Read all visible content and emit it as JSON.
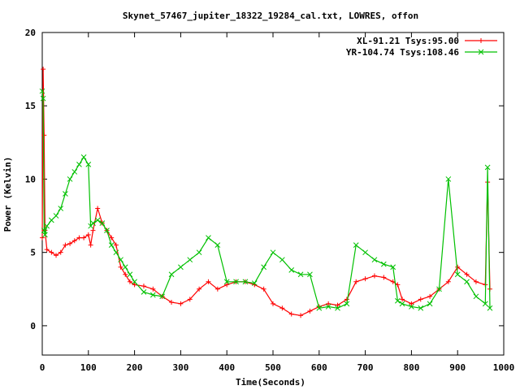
{
  "chart_data": {
    "type": "line",
    "title": "Skynet_57467_jupiter_18322_19284_cal.txt, LOWRES, offon",
    "xlabel": "Time(Seconds)",
    "ylabel": "Power (Kelvin)",
    "xlim": [
      0,
      1000
    ],
    "ylim": [
      -2,
      20
    ],
    "xticks": [
      0,
      100,
      200,
      300,
      400,
      500,
      600,
      700,
      800,
      900,
      1000
    ],
    "yticks": [
      0,
      5,
      10,
      15,
      20
    ],
    "grid": false,
    "legend_position": "top-right",
    "series": [
      {
        "name": "XL-91.21 Tsys:95.00",
        "color": "#ff0000",
        "marker": "+",
        "x": [
          0,
          2,
          4,
          6,
          10,
          20,
          30,
          40,
          50,
          60,
          70,
          80,
          90,
          100,
          105,
          110,
          120,
          130,
          140,
          150,
          160,
          170,
          180,
          190,
          200,
          220,
          240,
          260,
          280,
          300,
          320,
          340,
          360,
          380,
          400,
          420,
          440,
          460,
          480,
          500,
          520,
          540,
          560,
          580,
          600,
          620,
          640,
          660,
          680,
          700,
          720,
          740,
          760,
          770,
          780,
          800,
          820,
          840,
          860,
          880,
          900,
          920,
          940,
          960,
          965,
          970
        ],
        "y": [
          6,
          17.5,
          13,
          6.5,
          5.2,
          5,
          4.8,
          5,
          5.5,
          5.6,
          5.8,
          6,
          6,
          6.2,
          5.5,
          6.5,
          8,
          7,
          6.5,
          6,
          5.5,
          4,
          3.5,
          3,
          2.8,
          2.7,
          2.5,
          2,
          1.6,
          1.5,
          1.8,
          2.5,
          3,
          2.5,
          2.8,
          3,
          3,
          2.8,
          2.5,
          1.5,
          1.2,
          0.8,
          0.7,
          1,
          1.3,
          1.5,
          1.4,
          1.8,
          3,
          3.2,
          3.4,
          3.3,
          3,
          2.8,
          1.8,
          1.5,
          1.8,
          2,
          2.5,
          3,
          4,
          3.5,
          3,
          2.8,
          9.8,
          2.5
        ]
      },
      {
        "name": "YR-104.74 Tsys:108.46",
        "color": "#00c000",
        "marker": "x",
        "x": [
          0,
          2,
          4,
          6,
          10,
          20,
          30,
          40,
          50,
          60,
          70,
          80,
          90,
          100,
          105,
          110,
          120,
          130,
          140,
          150,
          160,
          170,
          180,
          190,
          200,
          220,
          240,
          260,
          280,
          300,
          320,
          340,
          360,
          380,
          400,
          420,
          440,
          460,
          480,
          500,
          520,
          540,
          560,
          580,
          600,
          620,
          640,
          660,
          680,
          700,
          720,
          740,
          760,
          770,
          780,
          800,
          820,
          840,
          860,
          880,
          900,
          920,
          940,
          960,
          965,
          970
        ],
        "y": [
          16,
          15.5,
          6.5,
          6.2,
          6.8,
          7.2,
          7.5,
          8,
          9,
          10,
          10.5,
          11,
          11.5,
          11,
          6.8,
          7,
          7.2,
          7,
          6.5,
          5.5,
          5,
          4.5,
          4,
          3.5,
          3,
          2.3,
          2.1,
          2,
          3.5,
          4,
          4.5,
          5,
          6,
          5.5,
          3,
          3,
          3,
          2.9,
          4,
          5,
          4.5,
          3.8,
          3.5,
          3.5,
          1.2,
          1.3,
          1.2,
          1.5,
          5.5,
          5,
          4.5,
          4.2,
          4,
          1.7,
          1.5,
          1.3,
          1.2,
          1.5,
          2.5,
          10,
          3.5,
          3,
          2,
          1.5,
          10.8,
          1.2
        ]
      }
    ]
  }
}
